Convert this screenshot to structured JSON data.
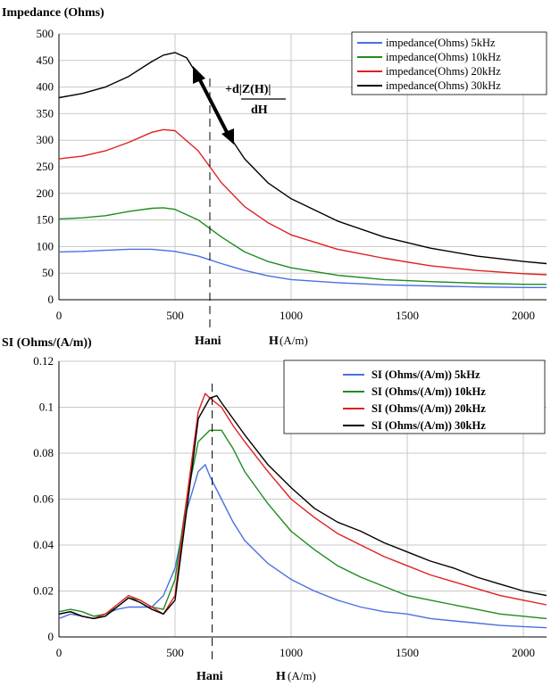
{
  "chart_data": [
    {
      "type": "line",
      "title": "Impedance (Ohms)",
      "xlabel": "H",
      "xunit": "(A/m)",
      "xmarker_label": "Hani",
      "xlim": [
        0,
        2100
      ],
      "ylim": [
        0,
        500
      ],
      "yticks": [
        "0",
        "50",
        "100",
        "150",
        "200",
        "250",
        "300",
        "350",
        "400",
        "450",
        "500"
      ],
      "xticks": [
        "0",
        "500",
        "1000",
        "1500",
        "2000"
      ],
      "grid": true,
      "legend_position": "top-right",
      "annotation": {
        "numerator": "+d|Z(H)|",
        "denominator": "dH"
      },
      "series": [
        {
          "name": "impedance(Ohms) 5kHz",
          "color": "#4a6fe3",
          "x": [
            0,
            100,
            200,
            300,
            400,
            500,
            600,
            700,
            800,
            900,
            1000,
            1200,
            1400,
            1600,
            1800,
            2000,
            2100
          ],
          "y": [
            90,
            91,
            93,
            95,
            95,
            91,
            82,
            68,
            55,
            45,
            38,
            32,
            28,
            26,
            24,
            23,
            23
          ]
        },
        {
          "name": "impedance(Ohms) 10kHz",
          "color": "#1e8c1e",
          "x": [
            0,
            100,
            200,
            300,
            400,
            450,
            500,
            600,
            700,
            800,
            900,
            1000,
            1200,
            1400,
            1600,
            1800,
            2000,
            2100
          ],
          "y": [
            152,
            154,
            158,
            166,
            172,
            173,
            170,
            150,
            118,
            90,
            72,
            60,
            46,
            38,
            34,
            31,
            29,
            29
          ]
        },
        {
          "name": "impedance(Ohms) 20kHz",
          "color": "#e02020",
          "x": [
            0,
            100,
            200,
            300,
            400,
            450,
            500,
            600,
            700,
            800,
            900,
            1000,
            1200,
            1400,
            1600,
            1800,
            2000,
            2100
          ],
          "y": [
            265,
            270,
            280,
            296,
            315,
            320,
            318,
            280,
            220,
            175,
            145,
            122,
            95,
            78,
            64,
            55,
            49,
            47
          ]
        },
        {
          "name": "impedance(Ohms) 30kHz",
          "color": "#000000",
          "x": [
            0,
            100,
            200,
            300,
            400,
            450,
            500,
            550,
            600,
            700,
            800,
            900,
            1000,
            1200,
            1400,
            1600,
            1800,
            2000,
            2100
          ],
          "y": [
            380,
            388,
            400,
            420,
            448,
            460,
            465,
            455,
            420,
            330,
            265,
            220,
            190,
            148,
            118,
            97,
            82,
            72,
            68
          ]
        }
      ]
    },
    {
      "type": "line",
      "title": "SI (Ohms/(A/m))",
      "xlabel": "H",
      "xunit": "(A/m)",
      "xmarker_label": "Hani",
      "xlim": [
        0,
        2100
      ],
      "ylim": [
        0,
        0.12
      ],
      "yticks": [
        "0",
        "0.02",
        "0.04",
        "0.06",
        "0.08",
        "0.1",
        "0.12"
      ],
      "xticks": [
        "0",
        "500",
        "1000",
        "1500",
        "2000"
      ],
      "grid": true,
      "legend_position": "top-right",
      "series": [
        {
          "name": "SI (Ohms/(A/m)) 5kHz",
          "color": "#4a6fe3",
          "x": [
            0,
            50,
            100,
            150,
            200,
            250,
            300,
            350,
            400,
            450,
            500,
            550,
            600,
            630,
            650,
            700,
            750,
            800,
            900,
            1000,
            1100,
            1200,
            1300,
            1400,
            1500,
            1600,
            1700,
            1800,
            1900,
            2000,
            2100
          ],
          "y": [
            0.008,
            0.01,
            0.009,
            0.008,
            0.01,
            0.012,
            0.013,
            0.013,
            0.013,
            0.018,
            0.03,
            0.055,
            0.072,
            0.075,
            0.07,
            0.06,
            0.05,
            0.042,
            0.032,
            0.025,
            0.02,
            0.016,
            0.013,
            0.011,
            0.01,
            0.008,
            0.007,
            0.006,
            0.005,
            0.0045,
            0.004
          ]
        },
        {
          "name": "SI (Ohms/(A/m)) 10kHz",
          "color": "#1e8c1e",
          "x": [
            0,
            50,
            100,
            150,
            200,
            250,
            300,
            350,
            400,
            450,
            500,
            550,
            600,
            650,
            700,
            750,
            800,
            900,
            1000,
            1100,
            1200,
            1300,
            1400,
            1500,
            1600,
            1700,
            1800,
            1900,
            2000,
            2100
          ],
          "y": [
            0.011,
            0.012,
            0.011,
            0.009,
            0.01,
            0.013,
            0.017,
            0.016,
            0.013,
            0.012,
            0.025,
            0.06,
            0.085,
            0.09,
            0.09,
            0.082,
            0.072,
            0.058,
            0.046,
            0.038,
            0.031,
            0.026,
            0.022,
            0.018,
            0.016,
            0.014,
            0.012,
            0.01,
            0.009,
            0.008
          ]
        },
        {
          "name": "SI (Ohms/(A/m)) 20kHz",
          "color": "#e02020",
          "x": [
            0,
            50,
            100,
            150,
            200,
            250,
            300,
            350,
            400,
            450,
            500,
            550,
            600,
            630,
            650,
            700,
            750,
            800,
            900,
            1000,
            1100,
            1200,
            1300,
            1400,
            1500,
            1600,
            1700,
            1800,
            1900,
            2000,
            2100
          ],
          "y": [
            0.01,
            0.011,
            0.009,
            0.008,
            0.01,
            0.014,
            0.018,
            0.016,
            0.013,
            0.01,
            0.018,
            0.06,
            0.098,
            0.106,
            0.104,
            0.1,
            0.092,
            0.085,
            0.072,
            0.06,
            0.052,
            0.045,
            0.04,
            0.035,
            0.031,
            0.027,
            0.024,
            0.021,
            0.018,
            0.016,
            0.014
          ]
        },
        {
          "name": "SI (Ohms/(A/m)) 30kHz",
          "color": "#000000",
          "x": [
            0,
            50,
            100,
            150,
            200,
            250,
            300,
            350,
            400,
            450,
            500,
            550,
            600,
            650,
            680,
            700,
            750,
            800,
            900,
            1000,
            1100,
            1200,
            1300,
            1400,
            1500,
            1600,
            1700,
            1800,
            1900,
            2000,
            2100
          ],
          "y": [
            0.01,
            0.011,
            0.009,
            0.008,
            0.009,
            0.013,
            0.017,
            0.015,
            0.012,
            0.01,
            0.016,
            0.055,
            0.095,
            0.104,
            0.105,
            0.102,
            0.095,
            0.088,
            0.075,
            0.065,
            0.056,
            0.05,
            0.046,
            0.041,
            0.037,
            0.033,
            0.03,
            0.026,
            0.023,
            0.02,
            0.018
          ]
        }
      ]
    }
  ]
}
